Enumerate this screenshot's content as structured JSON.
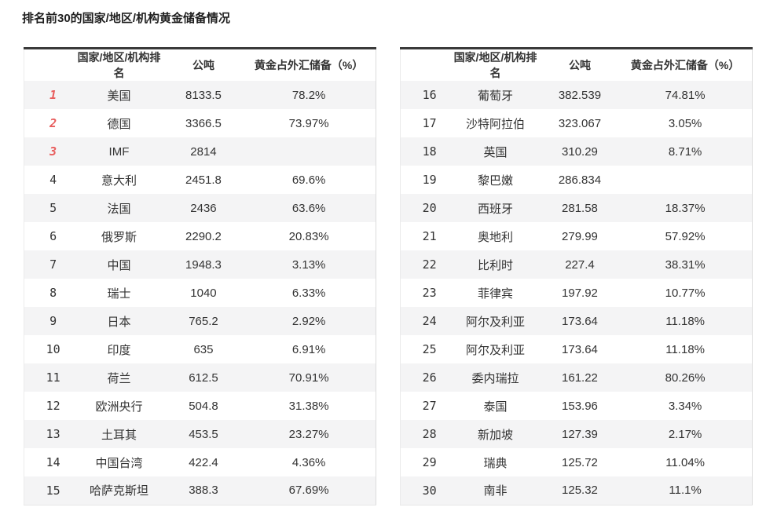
{
  "title": "排名前30的国家/地区/机构黄金储备情况",
  "columns": [
    "国家/地区/机构排名",
    "公吨",
    "黄金占外汇储备（%）"
  ],
  "colors": {
    "rank_top3": "#e85d5d",
    "rank_normal": "#4f4f4f",
    "row_stripe_bg": "#f4f4f5",
    "table_top_border": "#3a3a3a",
    "text": "#333333"
  },
  "layout": {
    "left_table_ranks": "1-15",
    "right_table_ranks": "16-30"
  },
  "chart_data": {
    "type": "table",
    "title": "排名前30的国家/地区/机构黄金储备情况",
    "columns": [
      "排名",
      "国家/地区/机构",
      "公吨",
      "黄金占外汇储备（%）"
    ],
    "rows": [
      [
        1,
        "美国",
        8133.5,
        "78.2%"
      ],
      [
        2,
        "德国",
        3366.5,
        "73.97%"
      ],
      [
        3,
        "IMF",
        2814,
        ""
      ],
      [
        4,
        "意大利",
        2451.8,
        "69.6%"
      ],
      [
        5,
        "法国",
        2436,
        "63.6%"
      ],
      [
        6,
        "俄罗斯",
        2290.2,
        "20.83%"
      ],
      [
        7,
        "中国",
        1948.3,
        "3.13%"
      ],
      [
        8,
        "瑞士",
        1040,
        "6.33%"
      ],
      [
        9,
        "日本",
        765.2,
        "2.92%"
      ],
      [
        10,
        "印度",
        635,
        "6.91%"
      ],
      [
        11,
        "荷兰",
        612.5,
        "70.91%"
      ],
      [
        12,
        "欧洲央行",
        504.8,
        "31.38%"
      ],
      [
        13,
        "土耳其",
        453.5,
        "23.27%"
      ],
      [
        14,
        "中国台湾",
        422.4,
        "4.36%"
      ],
      [
        15,
        "哈萨克斯坦",
        388.3,
        "67.69%"
      ],
      [
        16,
        "葡萄牙",
        382.539,
        "74.81%"
      ],
      [
        17,
        "沙特阿拉伯",
        323.067,
        "3.05%"
      ],
      [
        18,
        "英国",
        310.29,
        "8.71%"
      ],
      [
        19,
        "黎巴嫩",
        286.834,
        ""
      ],
      [
        20,
        "西班牙",
        281.58,
        "18.37%"
      ],
      [
        21,
        "奥地利",
        279.99,
        "57.92%"
      ],
      [
        22,
        "比利时",
        227.4,
        "38.31%"
      ],
      [
        23,
        "菲律宾",
        197.92,
        "10.77%"
      ],
      [
        24,
        "阿尔及利亚",
        173.64,
        "11.18%"
      ],
      [
        25,
        "阿尔及利亚",
        173.64,
        "11.18%"
      ],
      [
        26,
        "委内瑞拉",
        161.22,
        "80.26%"
      ],
      [
        27,
        "泰国",
        153.96,
        "3.34%"
      ],
      [
        28,
        "新加坡",
        127.39,
        "2.17%"
      ],
      [
        29,
        "瑞典",
        125.72,
        "11.04%"
      ],
      [
        30,
        "南非",
        125.32,
        "11.1%"
      ]
    ]
  }
}
